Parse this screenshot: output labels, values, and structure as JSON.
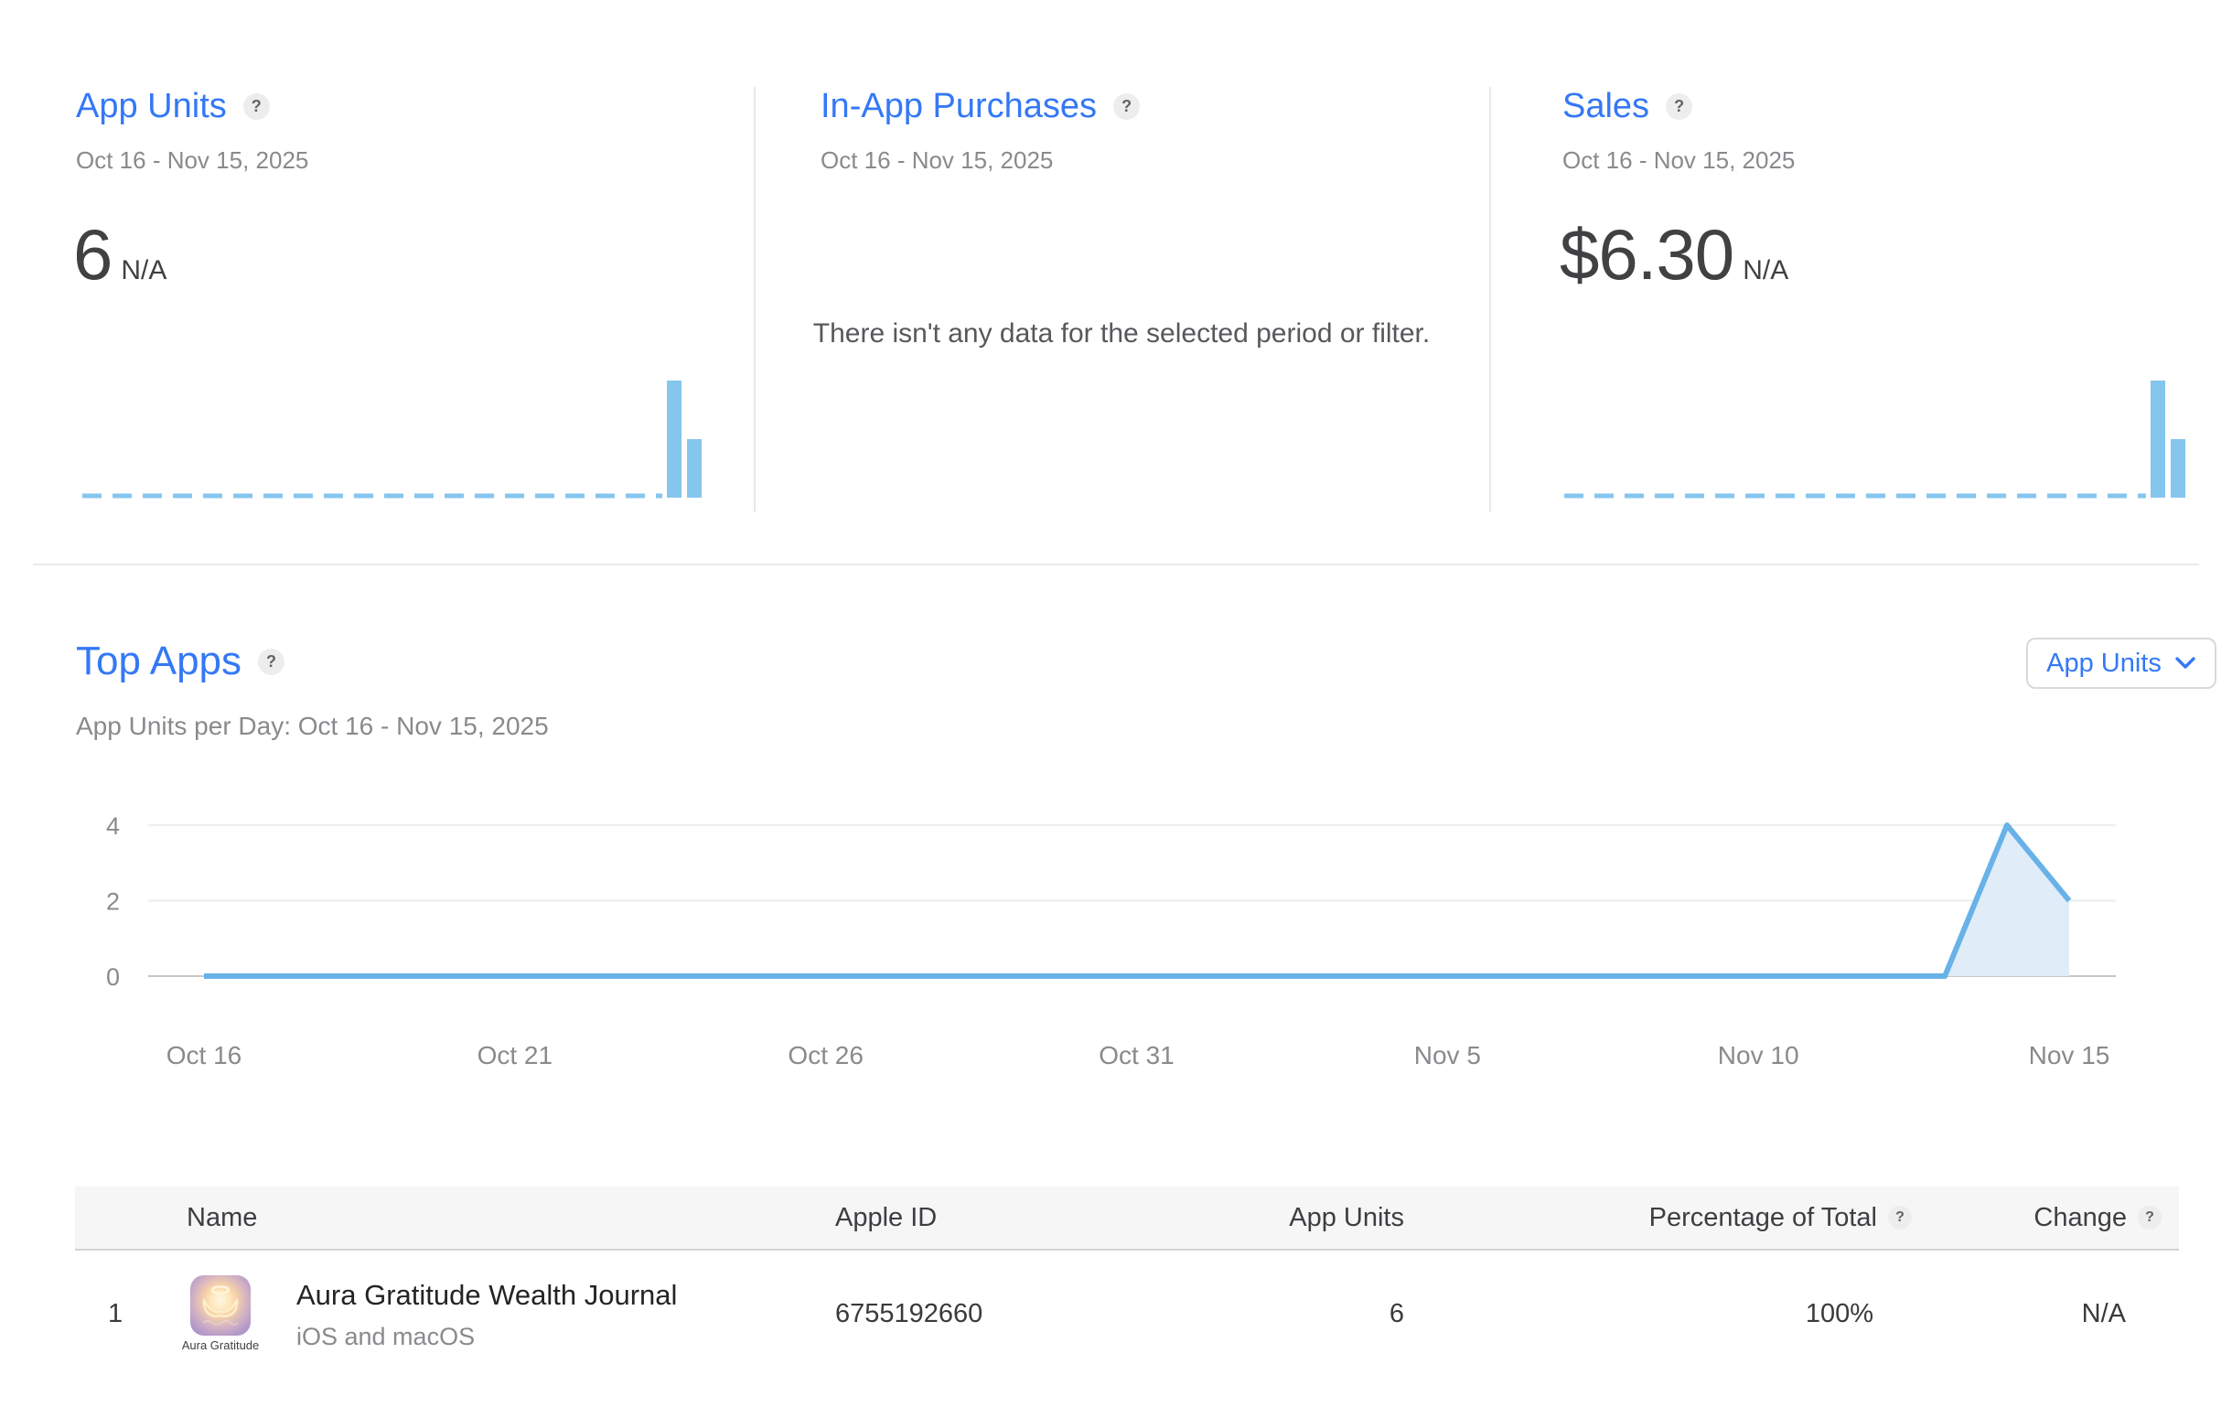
{
  "ui": {
    "help_glyph": "?"
  },
  "colors": {
    "accent_blue": "#3478F6",
    "line_blue": "#68B2E8",
    "bar_blue": "#85C6EE",
    "area_fill": "#E0EDF9",
    "grid_light": "#EDEDEE",
    "grid_zero": "#C6C6C9",
    "text_gray": "#8A8A8E",
    "text_dark": "#3A3A3C"
  },
  "metrics_cards": [
    {
      "title": "App Units",
      "date_range": "Oct 16 - Nov 15, 2025",
      "value": "6",
      "value_suffix": "N/A"
    },
    {
      "title": "In-App Purchases",
      "date_range": "Oct 16 - Nov 15, 2025",
      "empty_message": "There isn't any data for the selected period or filter."
    },
    {
      "title": "Sales",
      "date_range": "Oct 16 - Nov 15, 2025",
      "value": "$6.30",
      "value_suffix": "N/A"
    }
  ],
  "top_apps": {
    "title": "Top Apps",
    "subtitle": "App Units per Day: Oct 16 - Nov 15, 2025",
    "filter_label": "App Units"
  },
  "chart_data": [
    {
      "type": "bar",
      "title": "App Units mini trend (Oct 16 - Nov 15, 2025)",
      "x_start": "Oct 16",
      "x_end": "Nov 15",
      "values": [
        0,
        0,
        0,
        0,
        0,
        0,
        0,
        0,
        0,
        0,
        0,
        0,
        0,
        0,
        0,
        0,
        0,
        0,
        0,
        0,
        0,
        0,
        0,
        0,
        0,
        0,
        0,
        0,
        0,
        4,
        2
      ],
      "ylim": [
        0,
        4
      ],
      "grid": false,
      "baseline": "dashed"
    },
    {
      "type": "bar",
      "title": "Sales mini trend (Oct 16 - Nov 15, 2025)",
      "x_start": "Oct 16",
      "x_end": "Nov 15",
      "values": [
        0,
        0,
        0,
        0,
        0,
        0,
        0,
        0,
        0,
        0,
        0,
        0,
        0,
        0,
        0,
        0,
        0,
        0,
        0,
        0,
        0,
        0,
        0,
        0,
        0,
        0,
        0,
        0,
        0,
        4.2,
        2.1
      ],
      "ylim": [
        0,
        4.2
      ],
      "grid": false,
      "baseline": "dashed"
    },
    {
      "type": "area",
      "title": "App Units per Day: Oct 16 - Nov 15, 2025",
      "x_start": "Oct 16",
      "x_end": "Nov 15",
      "x_ticks": [
        "Oct 16",
        "Oct 21",
        "Oct 26",
        "Oct 31",
        "Nov 5",
        "Nov 10",
        "Nov 15"
      ],
      "y_ticks": [
        0,
        2,
        4
      ],
      "values": [
        0,
        0,
        0,
        0,
        0,
        0,
        0,
        0,
        0,
        0,
        0,
        0,
        0,
        0,
        0,
        0,
        0,
        0,
        0,
        0,
        0,
        0,
        0,
        0,
        0,
        0,
        0,
        0,
        0,
        4,
        2
      ],
      "ylim": [
        0,
        4
      ],
      "grid": true,
      "legend": false
    }
  ],
  "table": {
    "headers": [
      {
        "label": "Name",
        "help": false
      },
      {
        "label": "Apple ID",
        "help": false
      },
      {
        "label": "App Units",
        "help": false
      },
      {
        "label": "Percentage of Total",
        "help": true
      },
      {
        "label": "Change",
        "help": true
      }
    ],
    "rows": [
      {
        "rank": "1",
        "icon_caption": "Aura Gratitude",
        "name": "Aura Gratitude Wealth Journal",
        "platforms": "iOS and macOS",
        "apple_id": "6755192660",
        "app_units": "6",
        "percentage_of_total": "100%",
        "change": "N/A"
      }
    ]
  }
}
